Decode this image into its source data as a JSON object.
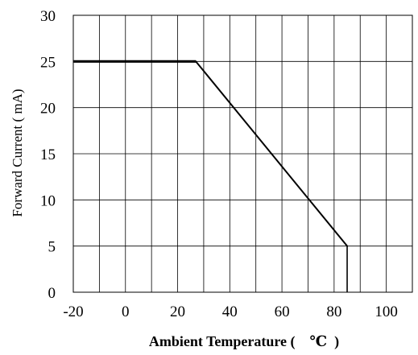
{
  "chart_data": {
    "type": "line",
    "xlabel": "Ambient Temperature (    ℃  )",
    "ylabel": "Forward Current ( mA)",
    "xlim": [
      -20,
      110
    ],
    "ylim": [
      0,
      30
    ],
    "x_ticks": [
      "-20",
      "0",
      "20",
      "40",
      "60",
      "80",
      "100"
    ],
    "y_ticks": [
      "0",
      "5",
      "10",
      "15",
      "20",
      "25",
      "30"
    ],
    "grid": true,
    "series": [
      {
        "x": [
          -20,
          27,
          85,
          85
        ],
        "y": [
          25,
          25,
          5,
          0
        ]
      }
    ],
    "line_color": "#000000"
  }
}
